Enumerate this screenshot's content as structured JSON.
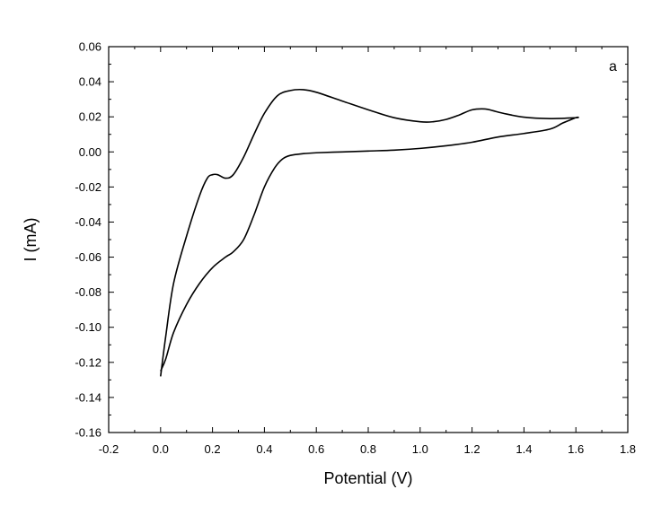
{
  "chart_data": {
    "type": "line",
    "title": "",
    "xlabel": "Potential (V)",
    "ylabel": "I (mA)",
    "panel_label": "a",
    "xlim": [
      -0.2,
      1.8
    ],
    "ylim": [
      -0.16,
      0.06
    ],
    "x_ticks": [
      -0.2,
      0.0,
      0.2,
      0.4,
      0.6,
      0.8,
      1.0,
      1.2,
      1.4,
      1.6,
      1.8
    ],
    "x_tick_labels": [
      "-0.2",
      "0.0",
      "0.2",
      "0.4",
      "0.6",
      "0.8",
      "1.0",
      "1.2",
      "1.4",
      "1.6",
      "1.8"
    ],
    "y_ticks": [
      0.06,
      0.04,
      0.02,
      0.0,
      -0.02,
      -0.04,
      -0.06,
      -0.08,
      -0.1,
      -0.12,
      -0.14,
      -0.16
    ],
    "y_tick_labels": [
      "0.06",
      "0.04",
      "0.02",
      "0.00",
      "-0.02",
      "-0.04",
      "-0.06",
      "-0.08",
      "-0.10",
      "-0.12",
      "-0.14",
      "-0.16"
    ],
    "grid": false,
    "line_color": "#000000",
    "series": [
      {
        "x": [
          0.0,
          0.02,
          0.05,
          0.1,
          0.15,
          0.18,
          0.2,
          0.22,
          0.25,
          0.28,
          0.32,
          0.36,
          0.4,
          0.45,
          0.5,
          0.55,
          0.6,
          0.7,
          0.8,
          0.9,
          1.0,
          1.05,
          1.1,
          1.15,
          1.2,
          1.25,
          1.28,
          1.32,
          1.4,
          1.5,
          1.6,
          1.6,
          1.55,
          1.5,
          1.4,
          1.3,
          1.2,
          1.1,
          1.0,
          0.9,
          0.8,
          0.7,
          0.6,
          0.55,
          0.5,
          0.47,
          0.44,
          0.4,
          0.36,
          0.32,
          0.28,
          0.25,
          0.2,
          0.15,
          0.1,
          0.05,
          0.02,
          0.0
        ],
        "y": [
          -0.128,
          -0.105,
          -0.075,
          -0.048,
          -0.025,
          -0.015,
          -0.013,
          -0.013,
          -0.015,
          -0.013,
          -0.003,
          0.01,
          0.022,
          0.032,
          0.035,
          0.0355,
          0.034,
          0.029,
          0.024,
          0.0195,
          0.0172,
          0.0172,
          0.0185,
          0.021,
          0.024,
          0.0245,
          0.0235,
          0.022,
          0.0198,
          0.019,
          0.0195,
          0.0195,
          0.0165,
          0.013,
          0.0105,
          0.0085,
          0.0055,
          0.0035,
          0.002,
          0.001,
          0.0005,
          0.0,
          -0.0005,
          -0.001,
          -0.002,
          -0.004,
          -0.009,
          -0.02,
          -0.036,
          -0.05,
          -0.057,
          -0.06,
          -0.066,
          -0.075,
          -0.087,
          -0.103,
          -0.118,
          -0.125
        ]
      }
    ]
  }
}
